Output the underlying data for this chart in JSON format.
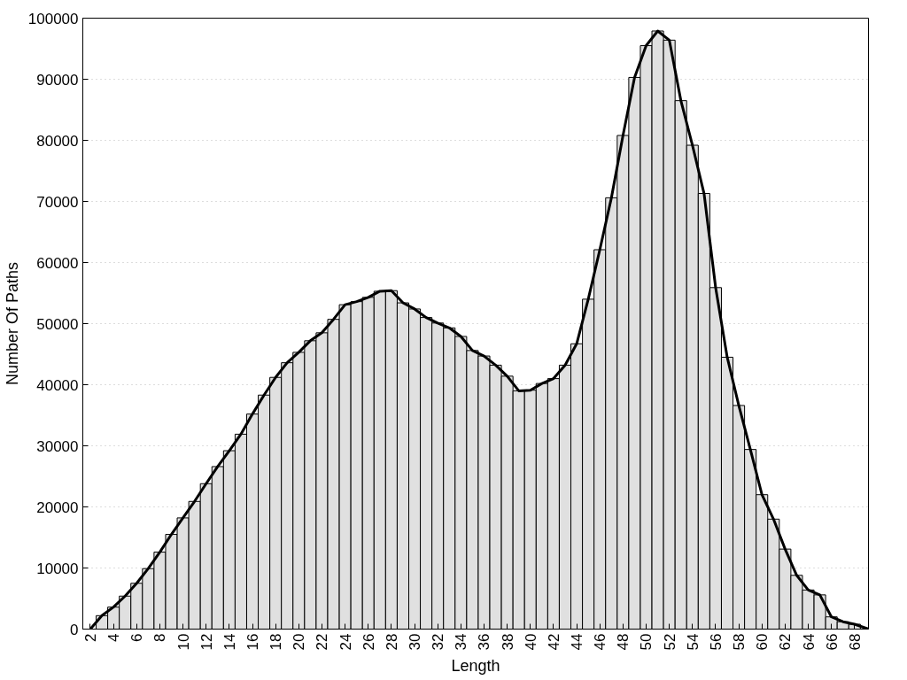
{
  "chart_data": {
    "type": "bar",
    "xlabel": "Length",
    "ylabel": "Number Of Paths",
    "xlim": [
      1.35,
      69.2
    ],
    "xticks": [
      2,
      4,
      6,
      8,
      10,
      12,
      14,
      16,
      18,
      20,
      22,
      24,
      26,
      28,
      30,
      32,
      34,
      36,
      38,
      40,
      42,
      44,
      46,
      48,
      50,
      52,
      54,
      56,
      58,
      60,
      62,
      64,
      66,
      68
    ],
    "ylim": [
      0,
      100000
    ],
    "yticks": [
      0,
      10000,
      20000,
      30000,
      40000,
      50000,
      60000,
      70000,
      80000,
      90000,
      100000
    ],
    "grid": "y",
    "series": [
      {
        "color": "#e0e0e0",
        "x": [
          3,
          4,
          5,
          6,
          7,
          8,
          9,
          10,
          11,
          12,
          13,
          14,
          15,
          16,
          17,
          18,
          19,
          20,
          21,
          22,
          23,
          24,
          25,
          26,
          27,
          28,
          29,
          30,
          31,
          32,
          33,
          34,
          35,
          36,
          37,
          38,
          39,
          40,
          41,
          42,
          43,
          44,
          45,
          46,
          47,
          48,
          49,
          50,
          51,
          52,
          53,
          54,
          55,
          56,
          57,
          58,
          59,
          60,
          61,
          62,
          63,
          64,
          65,
          66,
          67,
          68
        ],
        "values": [
          2200,
          3600,
          5400,
          7500,
          9900,
          12600,
          15500,
          18200,
          20900,
          23800,
          26600,
          29200,
          31900,
          35200,
          38300,
          41200,
          43600,
          45300,
          47200,
          48500,
          50700,
          53100,
          53600,
          54300,
          55300,
          55400,
          53400,
          52400,
          51000,
          50100,
          49300,
          47900,
          45600,
          44700,
          43200,
          41400,
          39000,
          39100,
          40200,
          41000,
          43200,
          46700,
          54000,
          62100,
          70600,
          80800,
          90300,
          95500,
          97900,
          96400,
          86500,
          79200,
          71300,
          55900,
          44500,
          36600,
          29400,
          22000,
          18000,
          13100,
          8800,
          6400,
          5600,
          2000,
          1200,
          800
        ]
      },
      {
        "type": "line",
        "color": "#000000",
        "line_style": "solid",
        "x": [
          2,
          3,
          4,
          5,
          6,
          7,
          8,
          9,
          10,
          11,
          12,
          13,
          14,
          15,
          16,
          17,
          18,
          19,
          20,
          21,
          22,
          23,
          24,
          25,
          26,
          27,
          28,
          29,
          30,
          31,
          32,
          33,
          34,
          35,
          36,
          37,
          38,
          39,
          40,
          41,
          42,
          43,
          44,
          45,
          46,
          47,
          48,
          49,
          50,
          51,
          52,
          53,
          54,
          55,
          56,
          57,
          58,
          59,
          60,
          61,
          62,
          63,
          64,
          65,
          66,
          67,
          68,
          69.2
        ],
        "values": [
          0,
          2200,
          3600,
          5400,
          7500,
          9900,
          12600,
          15500,
          18200,
          20900,
          23800,
          26600,
          29200,
          31900,
          35200,
          38300,
          41200,
          43600,
          45300,
          47200,
          48500,
          50700,
          53100,
          53600,
          54300,
          55300,
          55400,
          53400,
          52400,
          51000,
          50100,
          49300,
          47900,
          45600,
          44700,
          43200,
          41400,
          39000,
          39100,
          40200,
          41000,
          43200,
          46700,
          54000,
          62100,
          70600,
          80800,
          90300,
          95500,
          97900,
          96400,
          86500,
          79200,
          71300,
          55900,
          44500,
          36600,
          29400,
          22000,
          18000,
          13100,
          8800,
          6400,
          5600,
          2000,
          1200,
          800,
          0
        ]
      }
    ]
  }
}
